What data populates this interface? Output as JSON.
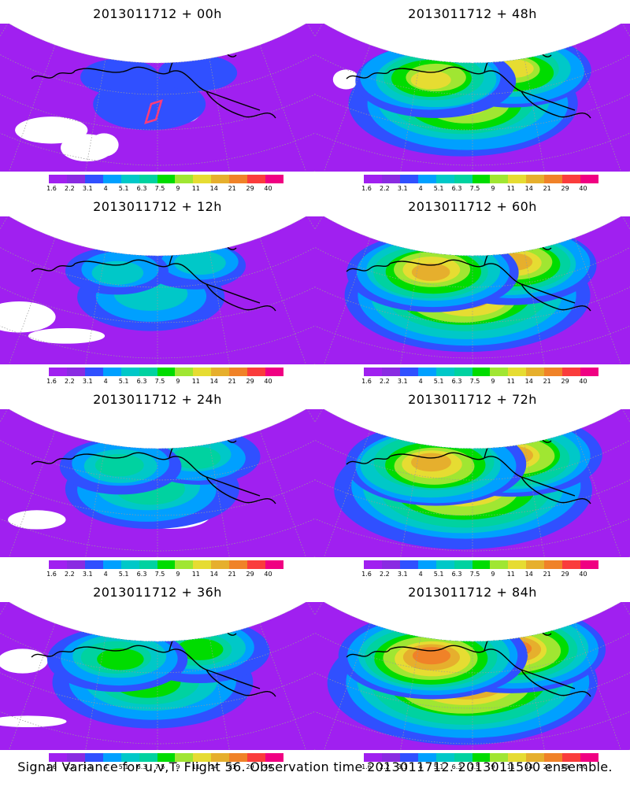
{
  "panels": [
    {
      "title": "2013011712 + 00h",
      "level": 0.15
    },
    {
      "title": "2013011712 + 48h",
      "level": 0.72
    },
    {
      "title": "2013011712 + 12h",
      "level": 0.32
    },
    {
      "title": "2013011712 + 60h",
      "level": 0.8
    },
    {
      "title": "2013011712 + 24h",
      "level": 0.45
    },
    {
      "title": "2013011712 + 72h",
      "level": 0.86
    },
    {
      "title": "2013011712 + 36h",
      "level": 0.58
    },
    {
      "title": "2013011712 + 84h",
      "level": 0.92
    }
  ],
  "colorbar": {
    "colors": [
      "#a020f0",
      "#8a2be2",
      "#3050ff",
      "#00a0ff",
      "#00c8c8",
      "#00d2a0",
      "#00dc00",
      "#a0e632",
      "#e6dc32",
      "#e6af2d",
      "#f08228",
      "#fa3c3c",
      "#f00082"
    ],
    "labels": [
      "1.6",
      "2.2",
      "3.1",
      "4",
      "5.1",
      "6.3",
      "7.5",
      "9",
      "11",
      "14",
      "21",
      "29",
      "40"
    ]
  },
  "map_colors": {
    "background": "#a020f0",
    "coast": "#000000",
    "grid": "#9a9a9a",
    "track": "#ff3c78"
  },
  "caption": "Signal Variance for u,v,T. Flight 56. Observation time 2013011712. 2013011500 ensemble."
}
